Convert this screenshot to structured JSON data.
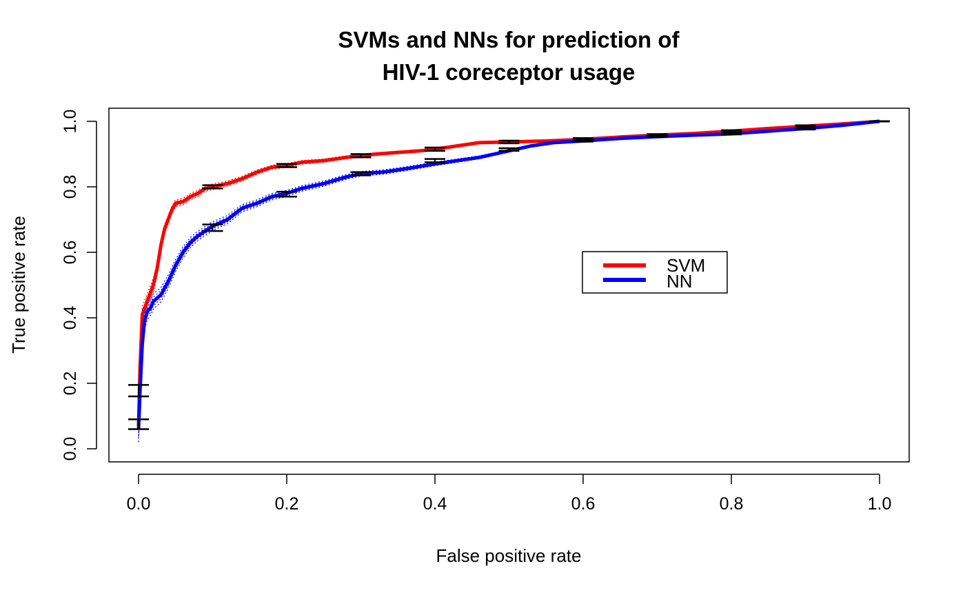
{
  "chart_data": {
    "type": "line",
    "title_lines": [
      "SVMs and NNs for prediction of",
      "HIV-1 coreceptor usage"
    ],
    "xlabel": "False positive rate",
    "ylabel": "True positive rate",
    "xlim": [
      0,
      1
    ],
    "ylim": [
      0,
      1
    ],
    "x_ticks": [
      "0.0",
      "0.2",
      "0.4",
      "0.6",
      "0.8",
      "1.0"
    ],
    "y_ticks": [
      "0.0",
      "0.2",
      "0.4",
      "0.6",
      "0.8",
      "1.0"
    ],
    "grid": false,
    "legend": {
      "position": "right-center",
      "entries": [
        "SVM",
        "NN"
      ]
    },
    "series": [
      {
        "name": "SVM",
        "color": "#ff0000",
        "x": [
          0,
          0.002,
          0.005,
          0.01,
          0.015,
          0.02,
          0.025,
          0.03,
          0.035,
          0.04,
          0.045,
          0.05,
          0.06,
          0.07,
          0.08,
          0.09,
          0.1,
          0.12,
          0.14,
          0.16,
          0.18,
          0.2,
          0.22,
          0.25,
          0.28,
          0.3,
          0.32,
          0.35,
          0.38,
          0.4,
          0.43,
          0.46,
          0.5,
          0.55,
          0.6,
          0.65,
          0.7,
          0.75,
          0.8,
          0.85,
          0.9,
          0.95,
          1.0
        ],
        "y": [
          0.07,
          0.25,
          0.41,
          0.44,
          0.47,
          0.5,
          0.55,
          0.62,
          0.67,
          0.7,
          0.73,
          0.75,
          0.755,
          0.77,
          0.78,
          0.795,
          0.8,
          0.81,
          0.825,
          0.845,
          0.86,
          0.865,
          0.875,
          0.88,
          0.89,
          0.895,
          0.9,
          0.905,
          0.91,
          0.915,
          0.925,
          0.935,
          0.937,
          0.94,
          0.945,
          0.952,
          0.958,
          0.963,
          0.97,
          0.978,
          0.985,
          0.992,
          1.0
        ],
        "error_bars": [
          {
            "x": 0,
            "low": 0.06,
            "high": 0.09
          },
          {
            "x": 0.1,
            "low": 0.795,
            "high": 0.805
          },
          {
            "x": 0.2,
            "low": 0.86,
            "high": 0.87
          },
          {
            "x": 0.3,
            "low": 0.89,
            "high": 0.9
          },
          {
            "x": 0.4,
            "low": 0.91,
            "high": 0.92
          },
          {
            "x": 0.5,
            "low": 0.933,
            "high": 0.941
          },
          {
            "x": 0.6,
            "low": 0.943,
            "high": 0.949
          },
          {
            "x": 0.7,
            "low": 0.955,
            "high": 0.961
          },
          {
            "x": 0.8,
            "low": 0.967,
            "high": 0.973
          },
          {
            "x": 0.9,
            "low": 0.982,
            "high": 0.988
          },
          {
            "x": 1.0,
            "low": 1.0,
            "high": 1.0
          }
        ]
      },
      {
        "name": "NN",
        "color": "#0000ff",
        "x": [
          0,
          0.002,
          0.005,
          0.008,
          0.012,
          0.016,
          0.02,
          0.025,
          0.03,
          0.04,
          0.05,
          0.06,
          0.07,
          0.08,
          0.09,
          0.1,
          0.12,
          0.14,
          0.16,
          0.18,
          0.2,
          0.22,
          0.25,
          0.28,
          0.3,
          0.33,
          0.36,
          0.4,
          0.43,
          0.46,
          0.5,
          0.53,
          0.56,
          0.6,
          0.65,
          0.7,
          0.75,
          0.8,
          0.85,
          0.9,
          0.95,
          1.0
        ],
        "y": [
          0.06,
          0.18,
          0.32,
          0.39,
          0.42,
          0.43,
          0.45,
          0.46,
          0.47,
          0.51,
          0.56,
          0.6,
          0.63,
          0.65,
          0.665,
          0.68,
          0.7,
          0.735,
          0.75,
          0.77,
          0.78,
          0.795,
          0.81,
          0.83,
          0.84,
          0.845,
          0.855,
          0.87,
          0.88,
          0.89,
          0.91,
          0.925,
          0.935,
          0.94,
          0.948,
          0.953,
          0.958,
          0.962,
          0.97,
          0.978,
          0.988,
          1.0
        ],
        "error_bars": [
          {
            "x": 0,
            "low": 0.16,
            "high": 0.195
          },
          {
            "x": 0.1,
            "low": 0.665,
            "high": 0.685
          },
          {
            "x": 0.2,
            "low": 0.77,
            "high": 0.785
          },
          {
            "x": 0.3,
            "low": 0.835,
            "high": 0.845
          },
          {
            "x": 0.4,
            "low": 0.875,
            "high": 0.885
          },
          {
            "x": 0.5,
            "low": 0.91,
            "high": 0.918
          },
          {
            "x": 0.6,
            "low": 0.938,
            "high": 0.946
          },
          {
            "x": 0.7,
            "low": 0.952,
            "high": 0.958
          },
          {
            "x": 0.8,
            "low": 0.96,
            "high": 0.966
          },
          {
            "x": 0.9,
            "low": 0.975,
            "high": 0.981
          },
          {
            "x": 1.0,
            "low": 1.0,
            "high": 1.0
          }
        ]
      }
    ]
  }
}
